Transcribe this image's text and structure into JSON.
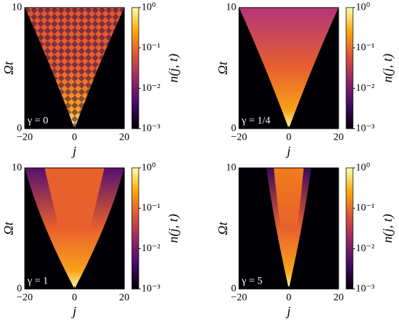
{
  "chart_data": [
    {
      "type": "heatmap",
      "annotation": "γ = 0",
      "xlabel": "j",
      "ylabel": "Ωt",
      "colorbar_label": "n(j, t)",
      "colormap": "inferno",
      "color_log_scale": true,
      "xlim": [
        -20,
        20
      ],
      "xticks": [
        {
          "value": -20,
          "label": "−20"
        },
        0,
        20
      ],
      "ylim": [
        0,
        10
      ],
      "yticks": [
        0,
        10
      ],
      "clim": [
        0.001,
        1
      ],
      "cticks": [
        {
          "value": 0.001,
          "label": "10⁻³"
        },
        {
          "value": 0.01,
          "label": "10⁻²"
        },
        {
          "value": 0.1,
          "label": "10⁻¹"
        },
        {
          "value": 1,
          "label": "10⁰"
        }
      ]
    },
    {
      "type": "heatmap",
      "annotation": "γ = 1/4",
      "xlabel": "j",
      "ylabel": "Ωt",
      "colorbar_label": "n(j, t)",
      "colormap": "inferno",
      "color_log_scale": true,
      "xlim": [
        -20,
        20
      ],
      "xticks": [
        {
          "value": -20,
          "label": "−20"
        },
        0,
        20
      ],
      "ylim": [
        0,
        10
      ],
      "yticks": [
        0,
        10
      ],
      "clim": [
        0.001,
        1
      ],
      "cticks": [
        {
          "value": 0.001,
          "label": "10⁻³"
        },
        {
          "value": 0.01,
          "label": "10⁻²"
        },
        {
          "value": 0.1,
          "label": "10⁻¹"
        },
        {
          "value": 1,
          "label": "10⁰"
        }
      ]
    },
    {
      "type": "heatmap",
      "annotation": "γ = 1",
      "xlabel": "j",
      "ylabel": "Ωt",
      "colorbar_label": "n(j, t)",
      "colormap": "inferno",
      "color_log_scale": true,
      "xlim": [
        -20,
        20
      ],
      "xticks": [
        {
          "value": -20,
          "label": "−20"
        },
        0,
        20
      ],
      "ylim": [
        0,
        10
      ],
      "yticks": [
        0,
        10
      ],
      "clim": [
        0.001,
        1
      ],
      "cticks": [
        {
          "value": 0.001,
          "label": "10⁻³"
        },
        {
          "value": 0.01,
          "label": "10⁻²"
        },
        {
          "value": 0.1,
          "label": "10⁻¹"
        },
        {
          "value": 1,
          "label": "10⁰"
        }
      ]
    },
    {
      "type": "heatmap",
      "annotation": "γ = 5",
      "xlabel": "j",
      "ylabel": "Ωt",
      "colorbar_label": "n(j, t)",
      "colormap": "inferno",
      "color_log_scale": true,
      "xlim": [
        -20,
        20
      ],
      "xticks": [
        {
          "value": -20,
          "label": "−20"
        },
        0,
        20
      ],
      "ylim": [
        0,
        10
      ],
      "yticks": [
        0,
        10
      ],
      "clim": [
        0.001,
        1
      ],
      "cticks": [
        {
          "value": 0.001,
          "label": "10⁻³"
        },
        {
          "value": 0.01,
          "label": "10⁻²"
        },
        {
          "value": 0.1,
          "label": "10⁻¹"
        },
        {
          "value": 1,
          "label": "10⁰"
        }
      ]
    }
  ]
}
